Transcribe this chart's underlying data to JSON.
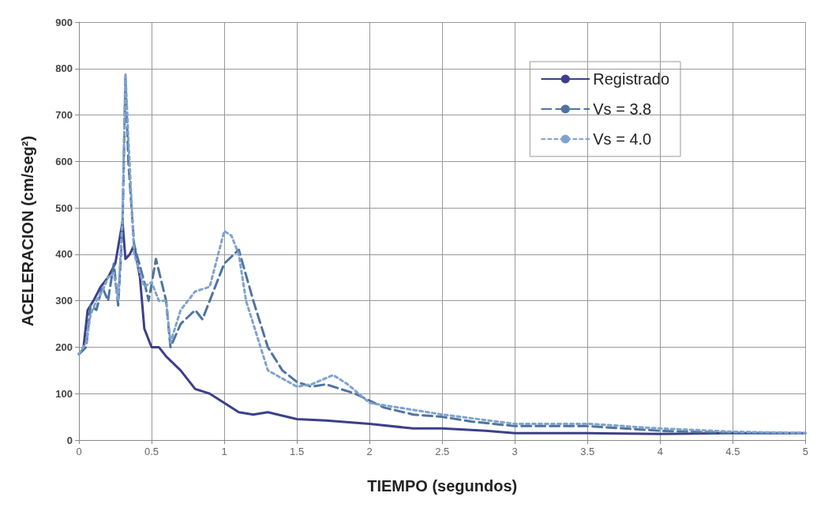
{
  "chart_data": {
    "type": "line",
    "xlabel": "TIEMPO (segundos)",
    "ylabel": "ACELERACION (cm/seg²)",
    "xlim": [
      0,
      5
    ],
    "xticks": [
      0,
      0.5,
      1,
      1.5,
      2,
      2.5,
      3,
      3.5,
      4,
      4.5,
      5
    ],
    "ylim": [
      0,
      900
    ],
    "yticks": [
      0,
      100,
      200,
      300,
      400,
      500,
      600,
      700,
      800,
      900
    ],
    "grid": true,
    "legend": "top right",
    "marker": "none",
    "series": [
      {
        "name": "Registrado",
        "color": "#3d3f8a",
        "line_style": "solid",
        "x": [
          0,
          0.03,
          0.06,
          0.1,
          0.15,
          0.2,
          0.25,
          0.3,
          0.32,
          0.35,
          0.38,
          0.42,
          0.45,
          0.5,
          0.55,
          0.6,
          0.7,
          0.8,
          0.9,
          1.0,
          1.1,
          1.2,
          1.3,
          1.5,
          1.7,
          2.0,
          2.3,
          2.5,
          2.8,
          3.0,
          3.5,
          4.0,
          4.5,
          5.0
        ],
        "values": [
          185,
          195,
          280,
          300,
          330,
          350,
          380,
          470,
          390,
          400,
          420,
          350,
          240,
          200,
          200,
          180,
          150,
          110,
          100,
          80,
          60,
          55,
          60,
          45,
          42,
          35,
          25,
          25,
          20,
          15,
          15,
          13,
          15,
          15
        ]
      },
      {
        "name": "Vs = 3.8",
        "color": "#4f74a0",
        "line_style": "dashed",
        "x": [
          0,
          0.05,
          0.08,
          0.12,
          0.16,
          0.2,
          0.24,
          0.27,
          0.3,
          0.32,
          0.34,
          0.38,
          0.45,
          0.48,
          0.53,
          0.6,
          0.63,
          0.7,
          0.8,
          0.85,
          0.9,
          1.0,
          1.1,
          1.2,
          1.3,
          1.4,
          1.5,
          1.6,
          1.7,
          1.9,
          2.1,
          2.3,
          2.5,
          2.7,
          3.0,
          3.5,
          4.0,
          4.5,
          5.0
        ],
        "values": [
          185,
          200,
          290,
          280,
          330,
          300,
          380,
          290,
          460,
          780,
          600,
          420,
          340,
          300,
          390,
          300,
          200,
          250,
          280,
          260,
          300,
          380,
          410,
          300,
          200,
          150,
          125,
          115,
          120,
          100,
          70,
          55,
          50,
          40,
          30,
          30,
          20,
          15,
          15
        ]
      },
      {
        "name": "Vs = 4.0",
        "color": "#7fa3cc",
        "line_style": "dotted",
        "x": [
          0,
          0.05,
          0.08,
          0.12,
          0.16,
          0.2,
          0.24,
          0.27,
          0.3,
          0.32,
          0.34,
          0.38,
          0.45,
          0.5,
          0.55,
          0.6,
          0.63,
          0.7,
          0.8,
          0.9,
          1.0,
          1.05,
          1.1,
          1.15,
          1.3,
          1.5,
          1.6,
          1.75,
          1.85,
          2.0,
          2.3,
          2.5,
          3.0,
          3.5,
          4.0,
          4.5,
          5.0
        ],
        "values": [
          185,
          210,
          270,
          300,
          320,
          350,
          360,
          300,
          480,
          790,
          650,
          400,
          330,
          340,
          300,
          300,
          210,
          280,
          320,
          330,
          450,
          440,
          400,
          300,
          150,
          115,
          120,
          140,
          120,
          80,
          65,
          55,
          35,
          35,
          25,
          18,
          15
        ]
      }
    ]
  }
}
